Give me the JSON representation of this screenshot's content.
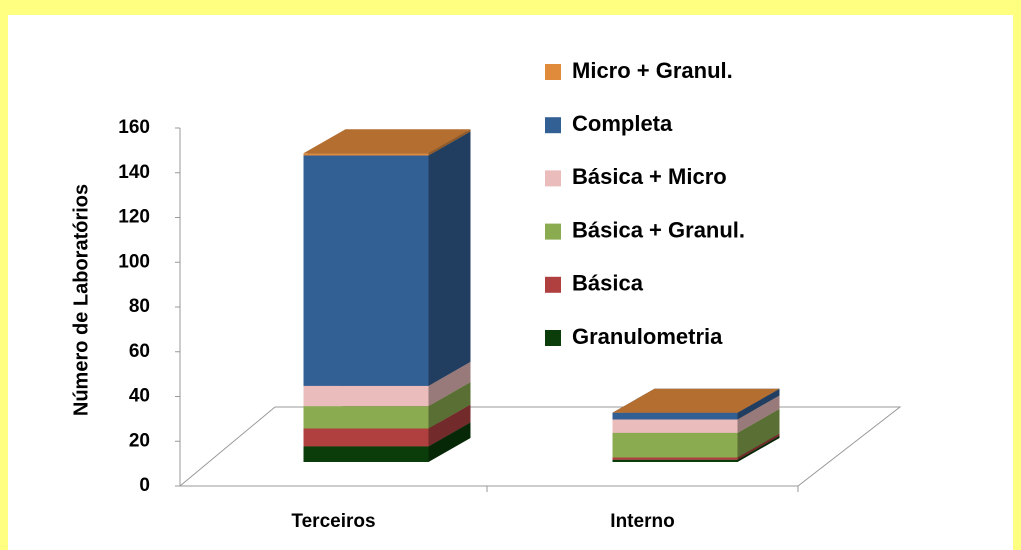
{
  "chart_data": {
    "type": "bar3d_stacked",
    "y_axis_label": "Número de Laboratórios",
    "categories": [
      "Terceiros",
      "Interno"
    ],
    "series": [
      {
        "name": "Granulometria",
        "color": "#0b3d0b",
        "values": [
          7,
          1
        ]
      },
      {
        "name": "Básica",
        "color": "#b04040",
        "values": [
          8,
          1
        ]
      },
      {
        "name": "Básica + Granul.",
        "color": "#8aab4f",
        "values": [
          10,
          11
        ]
      },
      {
        "name": "Básica + Micro",
        "color": "#ebbcbc",
        "values": [
          9,
          6
        ]
      },
      {
        "name": "Completa",
        "color": "#336094",
        "values": [
          103,
          3
        ]
      },
      {
        "name": "Micro + Granul.",
        "color": "#e08a3c",
        "values": [
          1,
          0
        ]
      }
    ],
    "ylim": [
      0,
      160
    ],
    "yticks": [
      0,
      20,
      40,
      60,
      80,
      100,
      120,
      140,
      160
    ],
    "legend": "right"
  }
}
